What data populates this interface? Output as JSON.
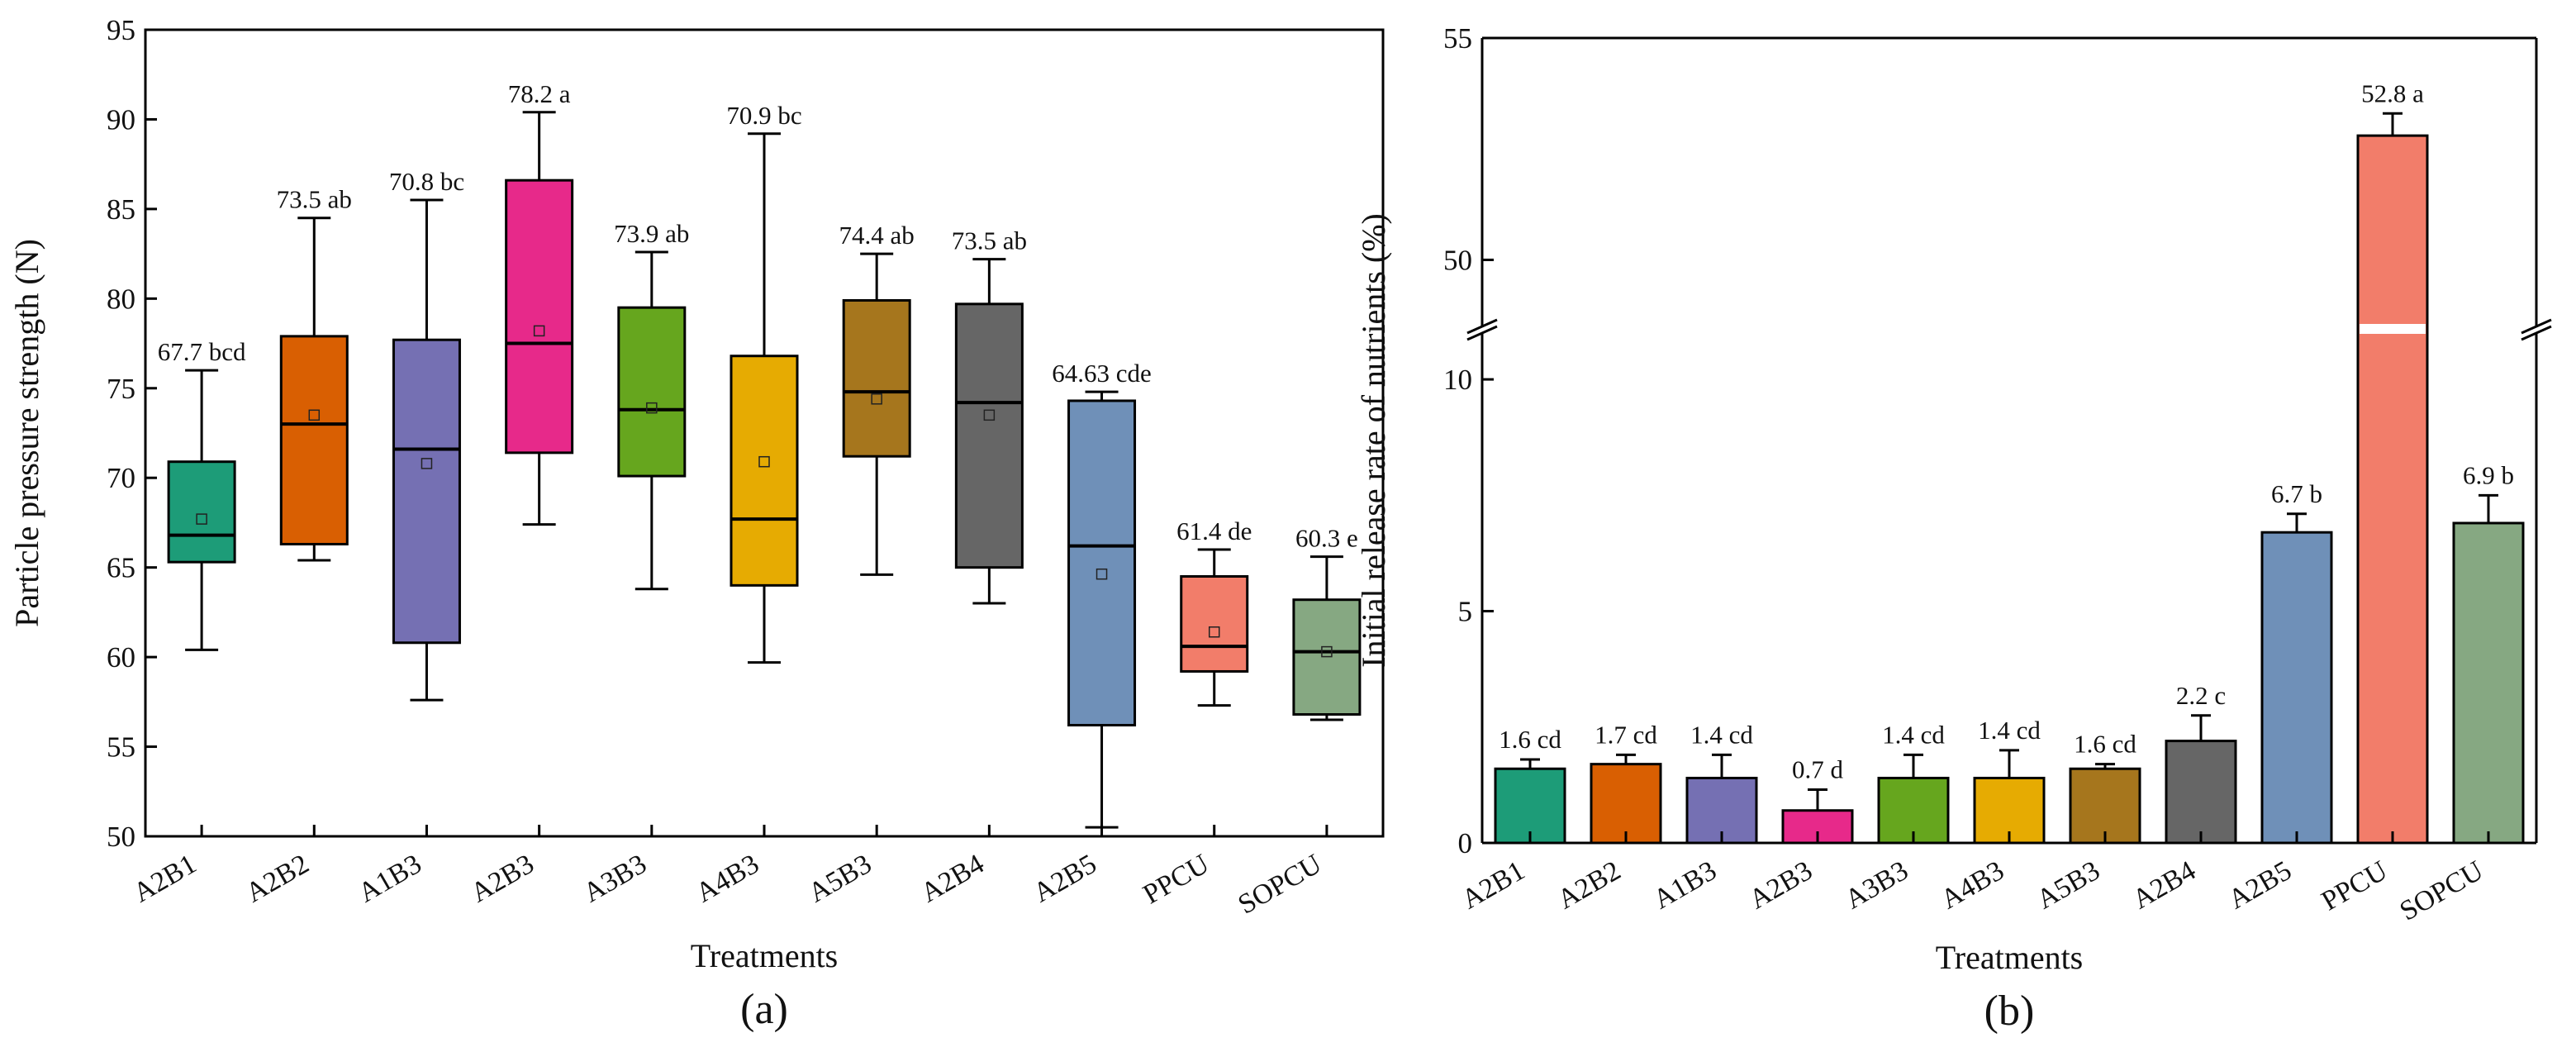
{
  "chart_data": [
    {
      "type": "box",
      "panel_label": "(a)",
      "xlabel": "Treatments",
      "ylabel": "Particle pressure strength (N)",
      "ylim": [
        50,
        95
      ],
      "yticks": [
        50,
        55,
        60,
        65,
        70,
        75,
        80,
        85,
        90,
        95
      ],
      "categories": [
        "A2B1",
        "A2B2",
        "A1B3",
        "A2B3",
        "A3B3",
        "A4B3",
        "A5B3",
        "A2B4",
        "A2B5",
        "PPCU",
        "SOPCU"
      ],
      "colors": [
        "#1d9c78",
        "#d95f02",
        "#7570b3",
        "#e7298a",
        "#66a61e",
        "#e6ab02",
        "#a6761d",
        "#666666",
        "#6f90b8",
        "#f27d6a",
        "#86a882"
      ],
      "boxes": [
        {
          "min": 60.4,
          "q1": 65.3,
          "median": 66.8,
          "q3": 70.9,
          "max": 76.0,
          "mean": 67.7
        },
        {
          "min": 65.4,
          "q1": 66.3,
          "median": 73.0,
          "q3": 77.9,
          "max": 84.5,
          "mean": 73.5
        },
        {
          "min": 57.6,
          "q1": 60.8,
          "median": 71.6,
          "q3": 77.7,
          "max": 85.5,
          "mean": 70.8
        },
        {
          "min": 67.4,
          "q1": 71.4,
          "median": 77.5,
          "q3": 86.6,
          "max": 90.4,
          "mean": 78.2
        },
        {
          "min": 63.8,
          "q1": 70.1,
          "median": 73.8,
          "q3": 79.5,
          "max": 82.6,
          "mean": 73.9
        },
        {
          "min": 59.7,
          "q1": 64.0,
          "median": 67.7,
          "q3": 76.8,
          "max": 89.2,
          "mean": 70.9
        },
        {
          "min": 64.6,
          "q1": 71.2,
          "median": 74.8,
          "q3": 79.9,
          "max": 82.5,
          "mean": 74.4
        },
        {
          "min": 63.0,
          "q1": 65.0,
          "median": 74.2,
          "q3": 79.7,
          "max": 82.2,
          "mean": 73.5
        },
        {
          "min": 50.5,
          "q1": 56.2,
          "median": 66.2,
          "q3": 74.3,
          "max": 74.8,
          "mean": 64.63
        },
        {
          "min": 57.3,
          "q1": 59.2,
          "median": 60.6,
          "q3": 64.5,
          "max": 66.0,
          "mean": 61.4
        },
        {
          "min": 56.5,
          "q1": 56.8,
          "median": 60.3,
          "q3": 63.2,
          "max": 65.6,
          "mean": 60.3
        }
      ],
      "data_labels": [
        "67.7  bcd",
        "73.5 ab",
        "70.8 bc",
        "78.2 a",
        "73.9 ab",
        "70.9 bc",
        "74.4 ab",
        "73.5 ab",
        "64.63 cde",
        "61.4 de",
        "60.3 e"
      ]
    },
    {
      "type": "bar",
      "panel_label": "(b)",
      "xlabel": "Treatments",
      "ylabel": "Initial release rate of nutrients (%)",
      "axis_break": true,
      "lower_ylim": [
        0,
        11
      ],
      "lower_yticks": [
        0,
        5,
        10
      ],
      "upper_ylim": [
        48.5,
        55
      ],
      "upper_yticks": [
        50,
        55
      ],
      "categories": [
        "A2B1",
        "A2B2",
        "A1B3",
        "A2B3",
        "A3B3",
        "A4B3",
        "A5B3",
        "A2B4",
        "A2B5",
        "PPCU",
        "SOPCU"
      ],
      "colors": [
        "#1d9c78",
        "#d95f02",
        "#7570b3",
        "#e7298a",
        "#66a61e",
        "#e6ab02",
        "#a6761d",
        "#666666",
        "#6f90b8",
        "#f27d6a",
        "#86a882"
      ],
      "values": [
        1.6,
        1.7,
        1.4,
        0.7,
        1.4,
        1.4,
        1.6,
        2.2,
        6.7,
        52.8,
        6.9
      ],
      "errors": [
        0.2,
        0.2,
        0.5,
        0.45,
        0.5,
        0.6,
        0.1,
        0.55,
        0.4,
        0.5,
        0.6
      ],
      "data_labels": [
        "1.6 cd",
        "1.7 cd",
        "1.4 cd",
        "0.7 d",
        "1.4 cd",
        "1.4  cd",
        "1.6 cd",
        "2.2 c",
        "6.7 b",
        "52.8 a",
        "6.9 b"
      ]
    }
  ]
}
